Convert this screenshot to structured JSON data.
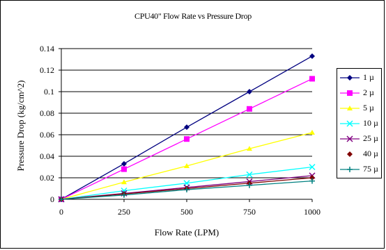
{
  "chart_data": {
    "type": "line",
    "title": "CPU40\" Flow Rate vs Pressure Drop",
    "xlabel": "Flow Rate (LPM)",
    "ylabel": "Pressure Drop (kg/cm^2)",
    "x": [
      0,
      250,
      500,
      750,
      1000
    ],
    "x_ticks": [
      "0",
      "250",
      "500",
      "750",
      "1000"
    ],
    "xlim": [
      0,
      1000
    ],
    "y_ticks": [
      "0",
      "0.02",
      "0.04",
      "0.06",
      "0.08",
      "0.1",
      "0.12",
      "0.14"
    ],
    "ylim": [
      0,
      0.14
    ],
    "grid": "horizontal",
    "legend_position": "right",
    "series": [
      {
        "name": "1 µ",
        "color": "#000080",
        "marker": "diamond",
        "values": [
          0,
          0.033,
          0.067,
          0.1,
          0.133
        ]
      },
      {
        "name": "2 µ",
        "color": "#ff00ff",
        "marker": "square",
        "values": [
          0,
          0.028,
          0.056,
          0.084,
          0.112
        ]
      },
      {
        "name": "5 µ",
        "color": "#ffff00",
        "marker": "triangle",
        "values": [
          0,
          0.016,
          0.031,
          0.047,
          0.062
        ]
      },
      {
        "name": "10 µ",
        "color": "#00ffff",
        "marker": "x",
        "values": [
          0,
          0.008,
          0.015,
          0.023,
          0.03
        ]
      },
      {
        "name": "25 µ",
        "color": "#800080",
        "marker": "x",
        "values": [
          0,
          0.0055,
          0.011,
          0.0165,
          0.022
        ]
      },
      {
        "name": "40 µ",
        "color": "#800000",
        "marker": "diamond",
        "values": [
          0,
          0.005,
          0.01,
          0.015,
          0.02
        ]
      },
      {
        "name": "75 µ",
        "color": "#008080",
        "marker": "plus",
        "values": [
          0,
          0.004,
          0.009,
          0.013,
          0.017
        ]
      }
    ]
  }
}
